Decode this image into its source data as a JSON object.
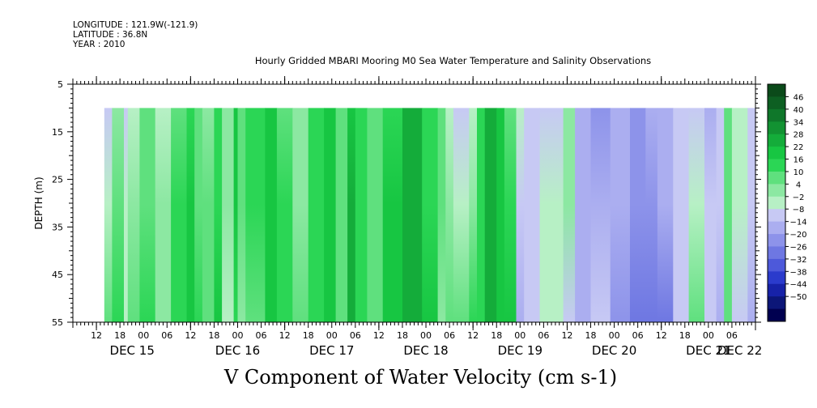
{
  "header": {
    "longitude": "LONGITUDE : 121.9W(-121.9)",
    "latitude": "LATITUDE : 36.8N",
    "year": "YEAR : 2010"
  },
  "chart_data": {
    "type": "heatmap",
    "title": "Hourly Gridded MBARI Mooring M0 Sea Water Temperature and Salinity Observations",
    "xlabel": "V Component of Water Velocity (cm s-1)",
    "ylabel": "DEPTH (m)",
    "x_range_hours": [
      0,
      174
    ],
    "ylim": [
      55,
      5
    ],
    "y_ticks": [
      "5",
      "15",
      "25",
      "35",
      "45",
      "55"
    ],
    "x_hour_ticks": [
      "12",
      "18",
      "00",
      "06",
      "12",
      "18",
      "00",
      "06",
      "12",
      "18",
      "00",
      "06",
      "12",
      "18",
      "00",
      "06",
      "12",
      "18",
      "00",
      "06",
      "12",
      "18",
      "00",
      "06",
      "12",
      "18",
      "00",
      "06"
    ],
    "x_day_labels": [
      "DEC 15",
      "DEC 16",
      "DEC 17",
      "DEC 18",
      "DEC 19",
      "DEC 20",
      "DEC 21",
      "DEC 22"
    ],
    "data_depth_range": [
      10,
      55
    ],
    "colorbar": {
      "labels": [
        "46",
        "40",
        "34",
        "28",
        "22",
        "16",
        "10",
        "4",
        "-2",
        "-8",
        "-14",
        "-20",
        "-26",
        "-32",
        "-38",
        "-44",
        "-50"
      ],
      "colors_top_to_bottom": [
        "#0b4a1a",
        "#0d5f22",
        "#0f772a",
        "#129232",
        "#14ac3a",
        "#17c642",
        "#2bd655",
        "#5fe07e",
        "#8ce8a2",
        "#b7f0c5",
        "#c7c9f4",
        "#abaef0",
        "#8d93ea",
        "#6e77e2",
        "#4d59da",
        "#2b3bcc",
        "#1722a8",
        "#0c1678",
        "#000050"
      ]
    },
    "columns_hour_start": [
      8,
      10,
      13,
      14,
      17,
      21,
      25,
      29,
      31,
      33,
      36,
      38,
      41,
      42,
      44,
      49,
      52,
      56,
      60,
      64,
      67,
      70,
      72,
      75,
      79,
      84,
      89,
      93,
      95,
      97,
      101,
      103,
      105,
      108,
      110,
      113,
      115,
      119,
      125,
      128,
      132,
      137,
      142,
      146,
      149,
      153,
      157,
      161,
      164,
      166,
      168,
      172
    ],
    "columns_v_upper": [
      -8,
      4,
      -10,
      -6,
      6,
      -4,
      10,
      16,
      6,
      2,
      12,
      4,
      20,
      8,
      14,
      22,
      10,
      2,
      12,
      18,
      6,
      22,
      14,
      8,
      16,
      24,
      14,
      10,
      -4,
      -10,
      -6,
      12,
      26,
      18,
      10,
      -6,
      -8,
      -10,
      4,
      -14,
      -20,
      -16,
      -20,
      -18,
      -14,
      -12,
      -10,
      -14,
      -10,
      6,
      -6,
      -10
    ],
    "columns_v_lower": [
      6,
      12,
      -4,
      8,
      14,
      4,
      16,
      22,
      12,
      8,
      18,
      -6,
      16,
      2,
      10,
      20,
      14,
      6,
      16,
      22,
      10,
      26,
      16,
      6,
      20,
      26,
      18,
      4,
      10,
      6,
      12,
      14,
      24,
      22,
      18,
      -14,
      -8,
      -2,
      -10,
      -18,
      -8,
      -22,
      -28,
      -30,
      -26,
      -12,
      10,
      -12,
      -16,
      8,
      -10,
      -16
    ]
  }
}
